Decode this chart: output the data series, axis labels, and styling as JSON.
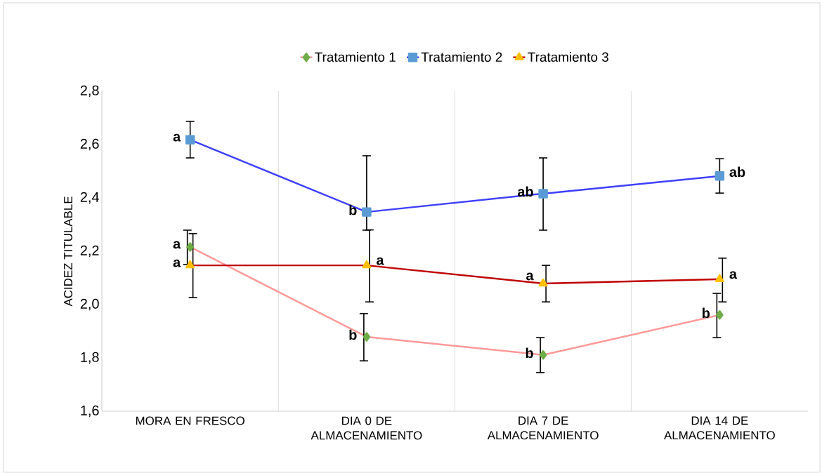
{
  "chart_data": {
    "type": "line",
    "ylabel": "ACIDEZ TITULABLE",
    "categories": [
      "MORA EN FRESCO",
      "DIA 0 DE ALMACENAMIENTO",
      "DIA 7 DE ALMACENAMIENTO",
      "DIA 14 DE ALMACENAMIENTO"
    ],
    "series": [
      {
        "name": "Tratamiento 1",
        "color": "#ff9999",
        "marker": "diamond",
        "values": [
          2.216,
          1.879,
          1.811,
          1.961
        ],
        "errors": [
          [
            2.15,
            2.279
          ],
          [
            1.789,
            1.966
          ],
          [
            1.745,
            1.876
          ],
          [
            1.876,
            2.042
          ]
        ]
      },
      {
        "name": "Tratamiento 2",
        "color": "#3f3fff",
        "marker": "square",
        "values": [
          2.618,
          2.347,
          2.416,
          2.482
        ],
        "errors": [
          [
            2.55,
            2.687
          ],
          [
            2.279,
            2.558
          ],
          [
            2.279,
            2.55
          ],
          [
            2.418,
            2.547
          ]
        ]
      },
      {
        "name": "Tratamiento 3",
        "color": "#c00000",
        "marker": "triangle",
        "values": [
          2.147,
          2.147,
          2.079,
          2.095
        ],
        "errors": [
          [
            2.026,
            2.266
          ],
          [
            2.01,
            2.28
          ],
          [
            2.01,
            2.147
          ],
          [
            2.01,
            2.174
          ]
        ]
      }
    ],
    "annotations": [
      {
        "text": "a",
        "x": "MORA EN FRESCO",
        "y": 2.216
      },
      {
        "text": "b",
        "x": "DIA 0 DE ALMACENAMIENTO",
        "y": 1.879
      },
      {
        "text": "b",
        "x": "DIA 7 DE ALMACENAMIENTO",
        "y": 1.811
      },
      {
        "text": "b",
        "x": "DIA 14 DE ALMACENAMIENTO",
        "y": 1.961
      },
      {
        "text": "a",
        "x": "MORA EN FRESCO",
        "y": 2.618
      },
      {
        "text": "b",
        "x": "DIA 0 DE ALMACENAMIENTO",
        "y": 2.347
      },
      {
        "text": "ab",
        "x": "DIA 7 DE ALMACENAMIENTO",
        "y": 2.416
      },
      {
        "text": "ab",
        "x": "DIA 14 DE ALMACENAMIENTO",
        "y": 2.482
      },
      {
        "text": "a",
        "x": "MORA EN FRESCO",
        "y": 2.147
      },
      {
        "text": "a",
        "x": "DIA 0 DE ALMACENAMIENTO",
        "y": 2.147
      },
      {
        "text": "a",
        "x": "DIA 7 DE ALMACENAMIENTO",
        "y": 2.079
      },
      {
        "text": "a",
        "x": "DIA 14 DE ALMACENAMIENTO",
        "y": 2.095
      }
    ],
    "ylim": [
      1.6,
      2.8
    ],
    "yticks": [
      {
        "value": 1.6,
        "label": "1,6"
      },
      {
        "value": 1.8,
        "label": "1,8"
      },
      {
        "value": 2.0,
        "label": "2,0"
      },
      {
        "value": 2.2,
        "label": "2,2"
      },
      {
        "value": 2.4,
        "label": "2,4"
      },
      {
        "value": 2.6,
        "label": "2,6"
      },
      {
        "value": 2.8,
        "label": "2,8"
      }
    ],
    "grid": "x",
    "legend": "top",
    "line_style": "solid"
  }
}
